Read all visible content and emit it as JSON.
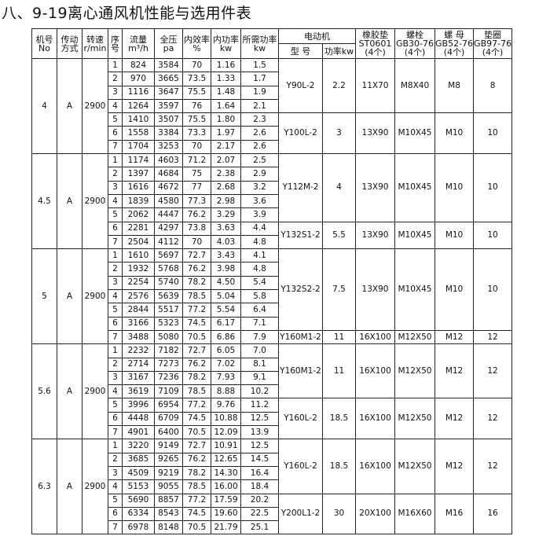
{
  "title": "八、9-19离心通风机性能与选用件表",
  "header": {
    "leading": [
      [
        "机号",
        "No"
      ],
      [
        "传动",
        "方式"
      ],
      [
        "转速",
        "r/min"
      ],
      [
        "序",
        "号"
      ],
      [
        "流量",
        "m³/h"
      ],
      [
        "全压",
        "pa"
      ],
      [
        "内效率",
        "%"
      ],
      [
        "内功率",
        "kw"
      ],
      [
        "所需功率",
        "kw"
      ]
    ],
    "motor": {
      "title": "电动机",
      "columns": [
        "型 号",
        "功率kw"
      ]
    },
    "parts": [
      [
        "橡胶垫",
        "ST0601",
        "(4个)"
      ],
      [
        "螺栓",
        "GB30-76",
        "(4个)"
      ],
      [
        "螺 母",
        "GB52-76",
        "(4个)"
      ],
      [
        "垫圈",
        "GB97-76",
        "(4个)"
      ]
    ]
  },
  "groups": [
    {
      "no": "4",
      "drive": "A",
      "speed": "2900",
      "motors": [
        {
          "model": "Y90L-2",
          "power": "2.2",
          "pad": "11X70",
          "bolt": "M8X40",
          "nut": "M8",
          "washer": "8",
          "rows": [
            [
              "1",
              "824",
              "3584",
              "70",
              "1.16",
              "1.5"
            ],
            [
              "2",
              "970",
              "3665",
              "73.5",
              "1.33",
              "1.7"
            ],
            [
              "3",
              "1116",
              "3647",
              "75.5",
              "1.48",
              "1.9"
            ],
            [
              "4",
              "1264",
              "3597",
              "76",
              "1.64",
              "2.1"
            ]
          ]
        },
        {
          "model": "Y100L-2",
          "power": "3",
          "pad": "13X90",
          "bolt": "M10X45",
          "nut": "M10",
          "washer": "10",
          "rows": [
            [
              "5",
              "1410",
              "3507",
              "75.5",
              "1.80",
              "2.3"
            ],
            [
              "6",
              "1558",
              "3384",
              "73.3",
              "1.97",
              "2.6"
            ],
            [
              "7",
              "1704",
              "3253",
              "70",
              "2.17",
              "2.6"
            ]
          ]
        }
      ]
    },
    {
      "no": "4.5",
      "drive": "A",
      "speed": "2900",
      "motors": [
        {
          "model": "Y112M-2",
          "power": "4",
          "pad": "13X90",
          "bolt": "M10X45",
          "nut": "M10",
          "washer": "10",
          "rows": [
            [
              "1",
              "1174",
              "4603",
              "71.2",
              "2.07",
              "2.5"
            ],
            [
              "2",
              "1397",
              "4684",
              "75",
              "2.38",
              "2.9"
            ],
            [
              "3",
              "1616",
              "4672",
              "77",
              "2.68",
              "3.2"
            ],
            [
              "4",
              "1839",
              "4580",
              "77.3",
              "2.98",
              "3.6"
            ],
            [
              "5",
              "2062",
              "4447",
              "76.2",
              "3.29",
              "3.9"
            ]
          ]
        },
        {
          "model": "Y132S1-2",
          "power": "5.5",
          "pad": "13X90",
          "bolt": "M10X45",
          "nut": "M10",
          "washer": "10",
          "rows": [
            [
              "6",
              "2281",
              "4297",
              "73.8",
              "3.63",
              "4.4"
            ],
            [
              "7",
              "2504",
              "4112",
              "70",
              "4.03",
              "4.8"
            ]
          ]
        }
      ]
    },
    {
      "no": "5",
      "drive": "A",
      "speed": "2900",
      "motors": [
        {
          "model": "Y132S2-2",
          "power": "7.5",
          "pad": "13X90",
          "bolt": "M10X45",
          "nut": "M10",
          "washer": "10",
          "rows": [
            [
              "1",
              "1610",
              "5697",
              "72.7",
              "3.43",
              "4.1"
            ],
            [
              "2",
              "1932",
              "5768",
              "76.2",
              "3.98",
              "4.8"
            ],
            [
              "3",
              "2254",
              "5740",
              "78.2",
              "4.50",
              "5.4"
            ],
            [
              "4",
              "2576",
              "5639",
              "78.5",
              "5.04",
              "5.8"
            ],
            [
              "5",
              "2844",
              "5517",
              "77.2",
              "5.54",
              "6.4"
            ],
            [
              "6",
              "3166",
              "5323",
              "74.5",
              "6.17",
              "7.1"
            ]
          ]
        },
        {
          "model": "Y160M1-2",
          "power": "11",
          "pad": "16X100",
          "bolt": "M12X50",
          "nut": "M12",
          "washer": "12",
          "rows": [
            [
              "7",
              "3488",
              "5080",
              "70.5",
              "6.86",
              "7.9"
            ]
          ]
        }
      ]
    },
    {
      "no": "5.6",
      "drive": "A",
      "speed": "2900",
      "motors": [
        {
          "model": "Y160M1-2",
          "power": "11",
          "pad": "16X100",
          "bolt": "M12X50",
          "nut": "M12",
          "washer": "12",
          "rows": [
            [
              "1",
              "2232",
              "7182",
              "72.7",
              "6.05",
              "7.0"
            ],
            [
              "2",
              "2714",
              "7273",
              "76.2",
              "7.02",
              "8.1"
            ],
            [
              "3",
              "3167",
              "7236",
              "78.2",
              "7.93",
              "9.1"
            ],
            [
              "4",
              "3619",
              "7109",
              "78.5",
              "8.88",
              "10.2"
            ]
          ]
        },
        {
          "model": "Y160L-2",
          "power": "18.5",
          "pad": "16X100",
          "bolt": "M12X50",
          "nut": "M12",
          "washer": "12",
          "rows": [
            [
              "5",
              "3996",
              "6954",
              "77.2",
              "9.76",
              "11.2"
            ],
            [
              "6",
              "4448",
              "6709",
              "74.5",
              "10.88",
              "12.5"
            ],
            [
              "7",
              "4901",
              "6400",
              "70.5",
              "12.09",
              "13.9"
            ]
          ]
        }
      ]
    },
    {
      "no": "6.3",
      "drive": "A",
      "speed": "2900",
      "motors": [
        {
          "model": "Y160L-2",
          "power": "18.5",
          "pad": "16X100",
          "bolt": "M12X50",
          "nut": "M12",
          "washer": "12",
          "rows": [
            [
              "1",
              "3220",
              "9149",
              "72.7",
              "10.91",
              "12.5"
            ],
            [
              "2",
              "3685",
              "9265",
              "76.2",
              "12.65",
              "14.5"
            ],
            [
              "3",
              "4509",
              "9219",
              "78.2",
              "14.30",
              "16.4"
            ],
            [
              "4",
              "5153",
              "9055",
              "78.5",
              "16.00",
              "18.4"
            ]
          ]
        },
        {
          "model": "Y200L1-2",
          "power": "30",
          "pad": "20X100",
          "bolt": "M16X60",
          "nut": "M16",
          "washer": "16",
          "rows": [
            [
              "5",
              "5690",
              "8857",
              "77.2",
              "17.59",
              "20.2"
            ],
            [
              "6",
              "6334",
              "8543",
              "74.5",
              "19.60",
              "22.5"
            ],
            [
              "7",
              "6978",
              "8148",
              "70.5",
              "21.79",
              "25.1"
            ]
          ]
        }
      ]
    }
  ]
}
